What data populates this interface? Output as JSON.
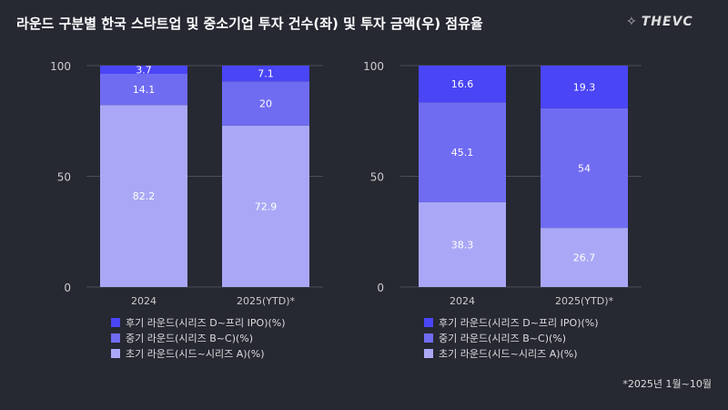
{
  "title": "라운드 구분별 한국 스타트업 및 중소기업 투자 건수(좌) 및 투자 금액(우) 점유율",
  "logo": "THEVC",
  "note": "*2025년 1월~10월",
  "colors": {
    "late": "#4a45f5",
    "mid": "#706cf2",
    "early": "#aaa8f6",
    "background": "#262832"
  },
  "chart_data": [
    {
      "type": "bar",
      "stacked": true,
      "categories": [
        "2024",
        "2025(YTD)*"
      ],
      "ylim": [
        0,
        100
      ],
      "yticks": [
        "0",
        "50",
        "100"
      ],
      "series": [
        {
          "name": "초기 라운드(시드~시리즈 A)(%)",
          "values": [
            82.2,
            72.9
          ],
          "labels": [
            "82.2",
            "72.9"
          ],
          "color": "#aaa8f6"
        },
        {
          "name": "중기 라운드(시리즈 B~C)(%)",
          "values": [
            14.1,
            20
          ],
          "labels": [
            "14.1",
            "20"
          ],
          "color": "#706cf2"
        },
        {
          "name": "후기 라운드(시리즈 D~프리 IPO)(%)",
          "values": [
            3.7,
            7.1
          ],
          "labels": [
            "3.7",
            "7.1"
          ],
          "color": "#4a45f5"
        }
      ]
    },
    {
      "type": "bar",
      "stacked": true,
      "categories": [
        "2024",
        "2025(YTD)*"
      ],
      "ylim": [
        0,
        100
      ],
      "yticks": [
        "0",
        "50",
        "100"
      ],
      "series": [
        {
          "name": "초기 라운드(시드~시리즈 A)(%)",
          "values": [
            38.3,
            26.7
          ],
          "labels": [
            "38.3",
            "26.7"
          ],
          "color": "#aaa8f6"
        },
        {
          "name": "중기 라운드(시리즈 B~C)(%)",
          "values": [
            45.1,
            54
          ],
          "labels": [
            "45.1",
            "54"
          ],
          "color": "#706cf2"
        },
        {
          "name": "후기 라운드(시리즈 D~프리 IPO)(%)",
          "values": [
            16.6,
            19.3
          ],
          "labels": [
            "16.6",
            "19.3"
          ],
          "color": "#4a45f5"
        }
      ]
    }
  ],
  "legend_order": [
    2,
    1,
    0
  ]
}
